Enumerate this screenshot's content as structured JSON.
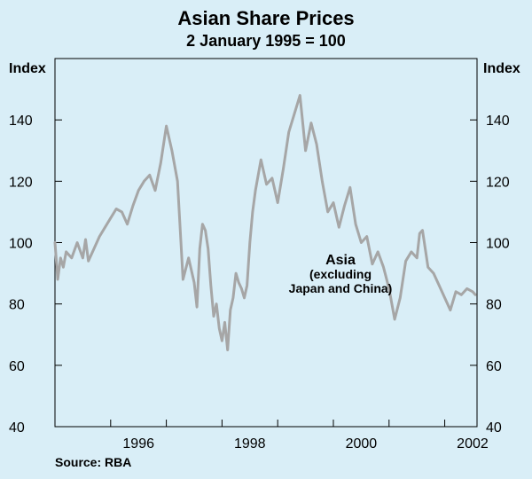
{
  "chart_data": {
    "type": "line",
    "title": "Asian Share Prices",
    "subtitle": "2 January 1995 = 100",
    "ylabel_left": "Index",
    "ylabel_right": "Index",
    "ylim": [
      40,
      160
    ],
    "yticks": [
      40,
      60,
      80,
      100,
      120,
      140
    ],
    "xlim": [
      1995.0,
      2002.58
    ],
    "xticks": [
      {
        "value": 1996.5,
        "label": "1996"
      },
      {
        "value": 1998.5,
        "label": "1998"
      },
      {
        "value": 2000.5,
        "label": "2000"
      },
      {
        "value": 2002.5,
        "label": "2002"
      }
    ],
    "annotation": {
      "line1": "Asia",
      "line2": "(excluding",
      "line3": "Japan and China)"
    },
    "source": "Source: RBA",
    "series": [
      {
        "color": "#a6a6a6",
        "x": [
          1995.0,
          1995.05,
          1995.1,
          1995.15,
          1995.2,
          1995.3,
          1995.4,
          1995.5,
          1995.55,
          1995.6,
          1995.7,
          1995.8,
          1995.9,
          1996.0,
          1996.1,
          1996.2,
          1996.3,
          1996.4,
          1996.5,
          1996.6,
          1996.7,
          1996.8,
          1996.9,
          1997.0,
          1997.1,
          1997.2,
          1997.3,
          1997.4,
          1997.5,
          1997.55,
          1997.6,
          1997.65,
          1997.7,
          1997.75,
          1997.8,
          1997.85,
          1997.9,
          1997.95,
          1998.0,
          1998.05,
          1998.1,
          1998.15,
          1998.2,
          1998.25,
          1998.3,
          1998.35,
          1998.4,
          1998.45,
          1998.5,
          1998.55,
          1998.6,
          1998.65,
          1998.7,
          1998.8,
          1998.9,
          1999.0,
          1999.1,
          1999.2,
          1999.3,
          1999.4,
          1999.5,
          1999.6,
          1999.7,
          1999.8,
          1999.9,
          2000.0,
          2000.1,
          2000.2,
          2000.3,
          2000.4,
          2000.5,
          2000.6,
          2000.7,
          2000.8,
          2000.9,
          2001.0,
          2001.1,
          2001.2,
          2001.3,
          2001.4,
          2001.5,
          2001.55,
          2001.6,
          2001.65,
          2001.7,
          2001.8,
          2001.9,
          2002.0,
          2002.1,
          2002.2,
          2002.3,
          2002.4,
          2002.5,
          2002.55
        ],
        "y": [
          100,
          88,
          95,
          92,
          97,
          95,
          100,
          95,
          101,
          94,
          98,
          102,
          105,
          108,
          111,
          110,
          106,
          112,
          117,
          120,
          122,
          117,
          126,
          138,
          130,
          120,
          88,
          95,
          87,
          79,
          98,
          106,
          104,
          98,
          86,
          76,
          80,
          72,
          68,
          74,
          65,
          78,
          82,
          90,
          87,
          85,
          82,
          86,
          100,
          110,
          117,
          122,
          127,
          119,
          121,
          113,
          124,
          136,
          142,
          148,
          130,
          139,
          132,
          120,
          110,
          113,
          105,
          112,
          118,
          106,
          100,
          102,
          93,
          97,
          92,
          85,
          75,
          82,
          94,
          97,
          95,
          103,
          104,
          98,
          92,
          90,
          86,
          82,
          78,
          84,
          83,
          85,
          84,
          83
        ]
      }
    ]
  }
}
